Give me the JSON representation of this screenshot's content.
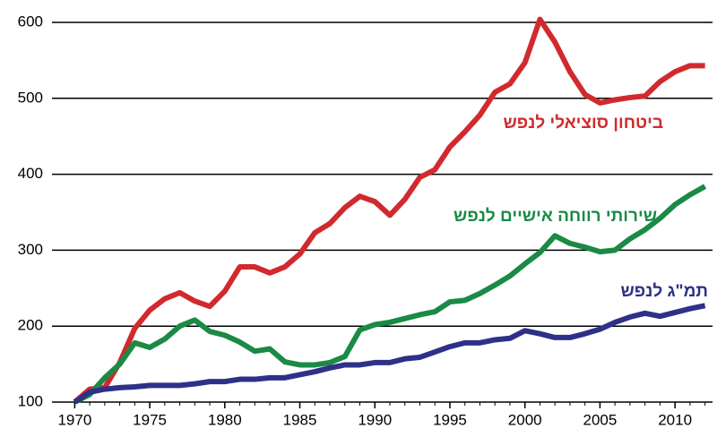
{
  "chart_data": {
    "type": "line",
    "x": [
      1970,
      1971,
      1972,
      1973,
      1974,
      1975,
      1976,
      1977,
      1978,
      1979,
      1980,
      1981,
      1982,
      1983,
      1984,
      1985,
      1986,
      1987,
      1988,
      1989,
      1990,
      1991,
      1992,
      1993,
      1994,
      1995,
      1996,
      1997,
      1998,
      1999,
      2000,
      2001,
      2002,
      2003,
      2004,
      2005,
      2006,
      2007,
      2008,
      2009,
      2010,
      2011,
      2012
    ],
    "series": [
      {
        "name": "ביטחון סוציאלי לנפש",
        "color": "#d12a2e",
        "values": [
          100,
          117,
          119,
          152,
          197,
          221,
          236,
          244,
          233,
          226,
          246,
          278,
          278,
          270,
          278,
          295,
          323,
          335,
          356,
          371,
          364,
          346,
          367,
          396,
          406,
          436,
          456,
          478,
          508,
          519,
          547,
          604,
          574,
          535,
          505,
          494,
          498,
          501,
          503,
          522,
          535,
          543,
          543
        ]
      },
      {
        "name": "שירותי רווחה אישיים לנפש",
        "color": "#1a8a45",
        "values": [
          100,
          110,
          132,
          150,
          178,
          172,
          183,
          200,
          208,
          193,
          188,
          179,
          167,
          170,
          153,
          149,
          149,
          152,
          160,
          195,
          202,
          205,
          210,
          215,
          219,
          232,
          234,
          243,
          254,
          266,
          282,
          297,
          319,
          309,
          304,
          298,
          300,
          315,
          327,
          342,
          360,
          373,
          384
        ]
      },
      {
        "name": "תמ\"ג לנפש",
        "color": "#2e3187",
        "values": [
          100,
          113,
          117,
          119,
          120,
          122,
          122,
          122,
          124,
          127,
          127,
          130,
          130,
          132,
          132,
          136,
          140,
          145,
          149,
          149,
          152,
          152,
          157,
          159,
          166,
          173,
          178,
          178,
          182,
          184,
          194,
          190,
          185,
          185,
          190,
          196,
          205,
          212,
          217,
          213,
          218,
          223,
          227
        ]
      }
    ],
    "xlim": [
      1969.5,
      2012.5
    ],
    "xticks": [
      1970,
      1975,
      1980,
      1985,
      1990,
      1995,
      2000,
      2005,
      2010
    ],
    "ylim": [
      100,
      600
    ],
    "yticks": [
      100,
      200,
      300,
      400,
      500,
      600
    ],
    "grid": true
  }
}
